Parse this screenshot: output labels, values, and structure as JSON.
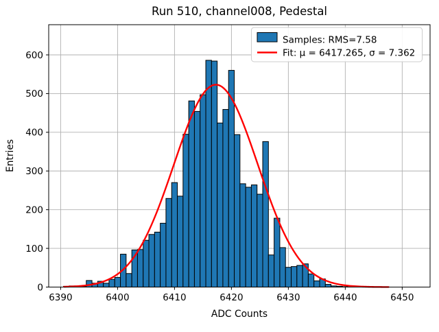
{
  "title": "Run 510, channel008, Pedestal",
  "x_axis": {
    "label": "ADC Counts",
    "ticks": [
      6390,
      6400,
      6410,
      6420,
      6430,
      6440,
      6450
    ]
  },
  "y_axis": {
    "label": "Entries",
    "ticks": [
      0,
      100,
      200,
      300,
      400,
      500,
      600
    ]
  },
  "legend": {
    "samples_label": "Samples: RMS=7.58",
    "fit_label": "Fit: μ = 6417.265, σ = 7.362"
  },
  "colors": {
    "bar_fill": "#1f77b4",
    "bar_edge": "#000000",
    "fit_line": "#ff0000",
    "grid": "#b0b0b0",
    "spine": "#000000",
    "legend_border": "#cccccc",
    "legend_bg": "#ffffff"
  },
  "chart_data": {
    "type": "bar",
    "subtype": "histogram",
    "title": "Run 510, channel008, Pedestal",
    "xlabel": "ADC Counts",
    "ylabel": "Entries",
    "grid": true,
    "legend_position": "upper right",
    "xlim": [
      6387.9,
      6454.9
    ],
    "ylim": [
      0,
      678
    ],
    "bin_width": 1,
    "bin_centers_start": 6391,
    "counts": [
      2,
      3,
      3,
      2,
      17,
      10,
      15,
      10,
      20,
      25,
      85,
      35,
      96,
      97,
      121,
      136,
      142,
      165,
      229,
      270,
      235,
      395,
      481,
      454,
      497,
      586,
      584,
      424,
      459,
      560,
      394,
      267,
      258,
      264,
      240,
      376,
      83,
      178,
      102,
      51,
      53,
      56,
      60,
      34,
      16,
      21,
      7,
      3,
      2,
      1
    ],
    "series": [
      {
        "name": "Samples: RMS=7.58",
        "type": "histogram",
        "rms": 7.58
      },
      {
        "name": "Fit: μ = 6417.265, σ = 7.362",
        "type": "gaussian",
        "amplitude": 523,
        "mu": 6417.265,
        "sigma": 7.362,
        "x_start": 6390.6,
        "x_end": 6447.8
      }
    ]
  }
}
